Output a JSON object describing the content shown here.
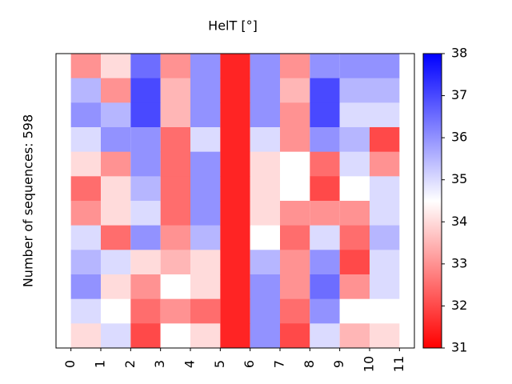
{
  "chart_data": {
    "type": "heatmap",
    "title": "HelT [°]",
    "ylabel": "Number of sequences: 598",
    "colormap": "bwr",
    "x_edges": [
      0,
      1,
      2,
      3,
      4,
      5,
      6,
      7,
      8,
      9,
      10,
      11
    ],
    "xlim": [
      -0.5,
      11.5
    ],
    "xticks": [
      0,
      1,
      2,
      3,
      4,
      5,
      6,
      7,
      8,
      9,
      10,
      11
    ],
    "clim": [
      31,
      38
    ],
    "cticks": [
      31,
      32,
      33,
      34,
      35,
      36,
      37,
      38
    ],
    "values": [
      [
        33,
        34,
        36.5,
        33,
        36,
        31.5,
        36,
        33,
        36,
        36,
        36
      ],
      [
        35.5,
        33,
        37,
        33.5,
        36,
        31.5,
        36,
        33.5,
        37,
        35.5,
        35.5
      ],
      [
        36,
        35.5,
        37,
        33.5,
        36,
        31.5,
        36,
        33,
        37,
        35,
        35
      ],
      [
        35,
        36,
        36,
        32.5,
        35,
        31.5,
        35,
        33,
        36,
        35.5,
        32
      ],
      [
        34,
        33,
        36,
        32.5,
        36,
        31.5,
        34,
        34.5,
        32.5,
        35,
        33
      ],
      [
        32.5,
        34,
        35.5,
        32.5,
        36,
        31.5,
        34,
        34.5,
        32,
        34.5,
        35
      ],
      [
        33,
        34,
        35,
        32.5,
        36,
        31.5,
        34,
        33,
        33,
        33,
        35
      ],
      [
        35,
        32.5,
        36,
        33,
        35.5,
        31.5,
        34.5,
        32.5,
        35,
        32.5,
        35.5
      ],
      [
        35.5,
        35,
        34,
        33.5,
        34,
        31.5,
        35.5,
        33,
        36,
        32,
        35
      ],
      [
        36,
        34,
        33,
        34.5,
        34,
        31.5,
        36,
        33,
        36.5,
        33,
        35
      ],
      [
        35,
        34.5,
        32.5,
        33,
        32.5,
        31.5,
        36,
        32.5,
        36,
        34.5,
        34.5
      ],
      [
        34,
        35,
        32,
        34.5,
        34,
        31.5,
        36,
        32,
        35,
        33.5,
        34
      ]
    ]
  }
}
